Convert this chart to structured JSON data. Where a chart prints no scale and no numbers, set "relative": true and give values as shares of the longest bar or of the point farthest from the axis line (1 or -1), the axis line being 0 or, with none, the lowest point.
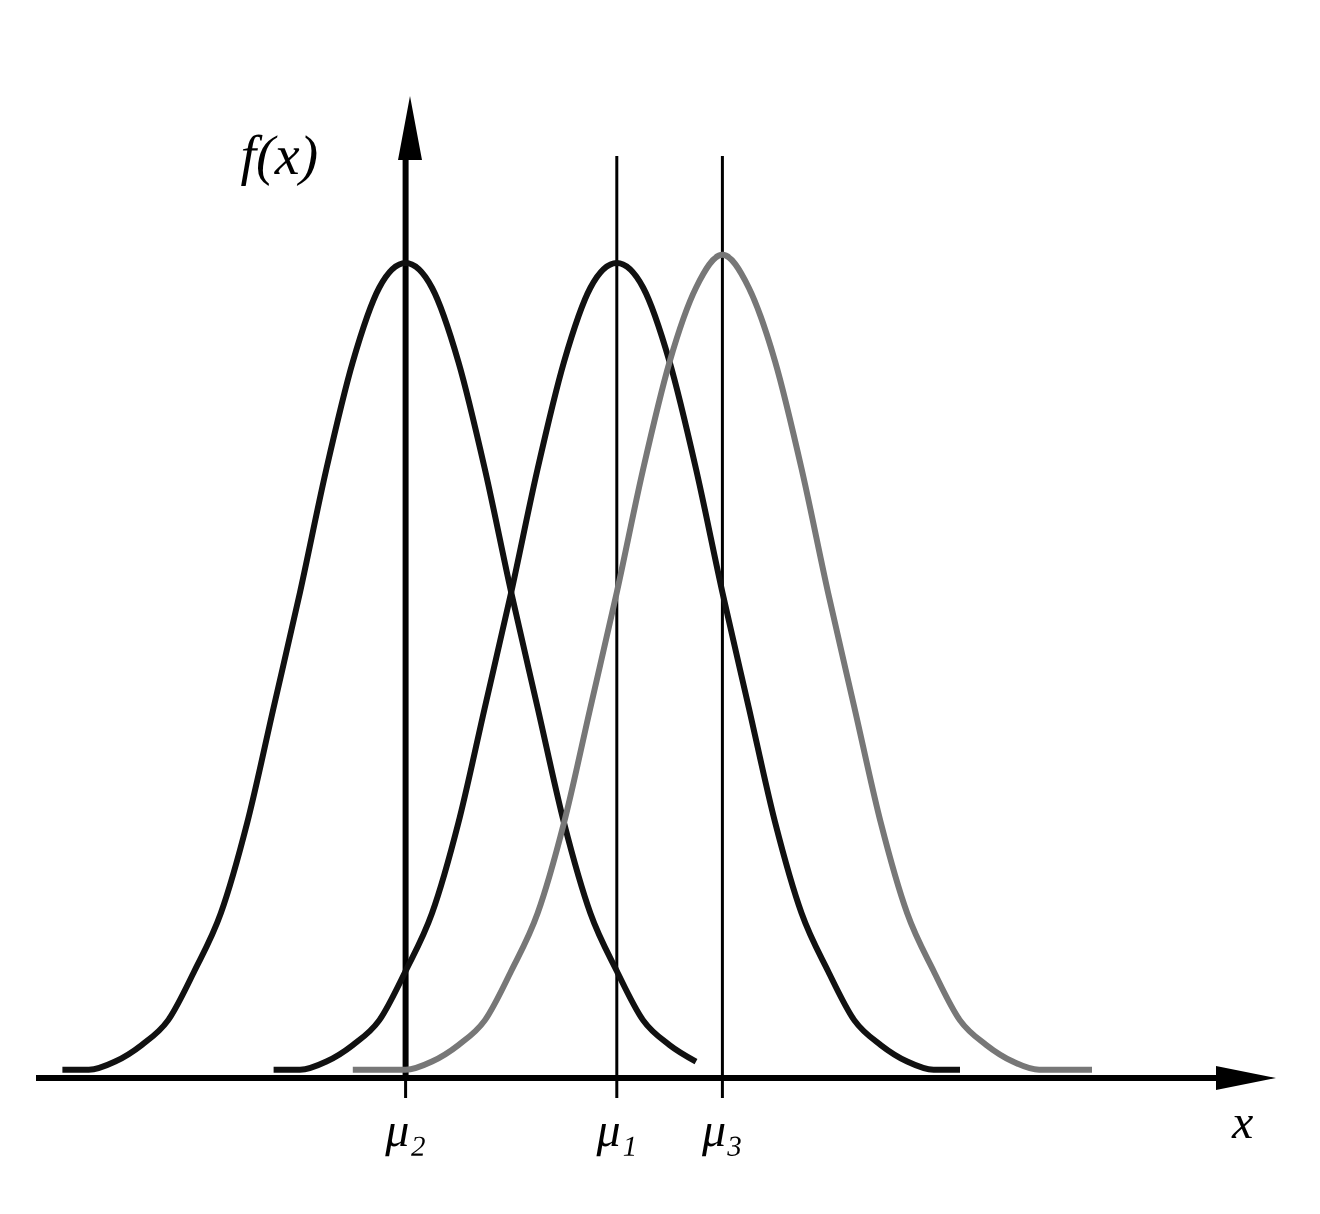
{
  "chart_data": {
    "type": "line",
    "relative": true,
    "xlabel": "x",
    "ylabel": "f(x)",
    "categories": [
      null,
      null,
      null,
      null,
      null,
      null,
      null,
      null,
      null,
      null,
      null,
      null,
      null,
      null,
      "μ₂",
      null,
      null,
      null,
      null,
      null,
      null,
      null,
      "μ₁",
      null,
      null,
      null,
      "μ₃",
      null,
      null,
      null,
      null,
      null,
      null,
      null,
      null,
      null,
      null,
      null,
      null,
      null,
      null,
      null,
      null,
      null,
      null,
      null
    ],
    "ref_lines": [
      {
        "axis": "x",
        "value": "μ₂",
        "color": "#000000"
      },
      {
        "axis": "x",
        "value": "μ₁",
        "color": "#000000"
      },
      {
        "axis": "x",
        "value": "μ₃",
        "color": "#000000"
      }
    ],
    "grid": false,
    "marker": "none",
    "line_style": "solid",
    "series": [
      {
        "color": "#111111",
        "values": [
          null,
          0.01,
          0.01,
          0.02,
          0.04,
          0.07,
          0.13,
          0.2,
          0.31,
          0.45,
          0.59,
          0.74,
          0.87,
          0.96,
          0.99,
          0.96,
          0.87,
          0.74,
          0.59,
          0.45,
          0.31,
          0.2,
          0.13,
          0.07,
          0.04,
          0.02,
          null,
          null,
          null,
          null,
          null,
          null,
          null,
          null,
          null,
          null,
          null,
          null,
          null,
          null,
          null,
          null,
          null,
          null,
          null,
          null
        ]
      },
      {
        "color": "#111111",
        "values": [
          null,
          null,
          null,
          null,
          null,
          null,
          null,
          null,
          null,
          0.01,
          0.01,
          0.02,
          0.04,
          0.07,
          0.13,
          0.2,
          0.31,
          0.45,
          0.59,
          0.74,
          0.87,
          0.96,
          0.99,
          0.96,
          0.87,
          0.74,
          0.59,
          0.45,
          0.31,
          0.2,
          0.13,
          0.07,
          0.04,
          0.02,
          0.01,
          0.01,
          null,
          null,
          null,
          null,
          null,
          null,
          null,
          null,
          null,
          null
        ]
      },
      {
        "color": "#777777",
        "values": [
          null,
          null,
          null,
          null,
          null,
          null,
          null,
          null,
          null,
          null,
          null,
          null,
          0.01,
          0.01,
          0.01,
          0.02,
          0.04,
          0.07,
          0.13,
          0.2,
          0.31,
          0.45,
          0.59,
          0.74,
          0.87,
          0.96,
          1,
          0.96,
          0.87,
          0.74,
          0.59,
          0.45,
          0.31,
          0.2,
          0.13,
          0.07,
          0.04,
          0.02,
          0.01,
          0.01,
          0.01,
          null,
          null,
          null,
          null,
          null
        ]
      }
    ]
  }
}
